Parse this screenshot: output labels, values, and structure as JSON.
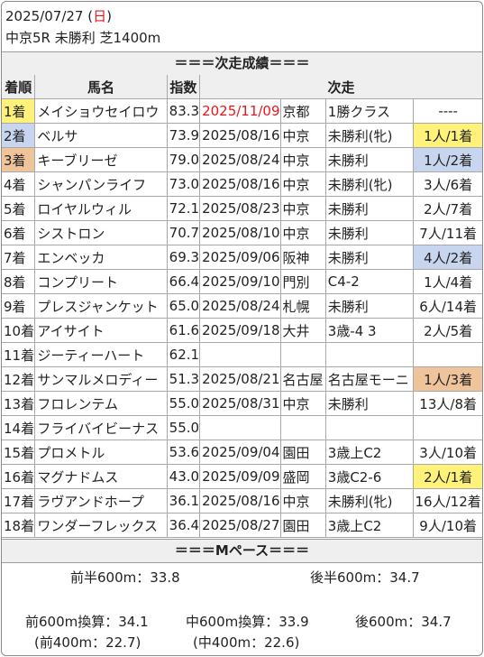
{
  "header": {
    "date": "2025/07/27",
    "dow_open": "(",
    "dow": "日",
    "dow_close": ")",
    "race": "中京5R 未勝利 芝1400m"
  },
  "section1": "＝＝＝次走成績＝＝＝",
  "columns": {
    "rank": "着順",
    "horse": "馬名",
    "index": "指数",
    "next": "次走"
  },
  "rows": [
    {
      "rank": "1着",
      "horse": "メイショウセイロウ",
      "index": "83.3",
      "date": "2025/11/09",
      "venue": "京都",
      "cls": "1勝クラス",
      "result": "----",
      "rank_color": "gold",
      "result_color": "",
      "date_red": true
    },
    {
      "rank": "2着",
      "horse": "ベルサ",
      "index": "73.9",
      "date": "2025/08/16",
      "venue": "中京",
      "cls": "未勝利(牝)",
      "result": "1人/1着",
      "rank_color": "silver",
      "result_color": "gold",
      "date_red": false
    },
    {
      "rank": "3着",
      "horse": "キーブリーゼ",
      "index": "79.0",
      "date": "2025/08/24",
      "venue": "中京",
      "cls": "未勝利",
      "result": "1人/2着",
      "rank_color": "bronze",
      "result_color": "silver",
      "date_red": false
    },
    {
      "rank": "4着",
      "horse": "シャンパンライフ",
      "index": "73.0",
      "date": "2025/08/16",
      "venue": "中京",
      "cls": "未勝利(牝)",
      "result": "3人/6着",
      "rank_color": "",
      "result_color": "",
      "date_red": false
    },
    {
      "rank": "5着",
      "horse": "ロイヤルウィル",
      "index": "72.1",
      "date": "2025/08/23",
      "venue": "中京",
      "cls": "未勝利",
      "result": "2人/7着",
      "rank_color": "",
      "result_color": "",
      "date_red": false
    },
    {
      "rank": "6着",
      "horse": "シストロン",
      "index": "70.7",
      "date": "2025/08/10",
      "venue": "中京",
      "cls": "未勝利",
      "result": "7人/11着",
      "rank_color": "",
      "result_color": "",
      "date_red": false
    },
    {
      "rank": "7着",
      "horse": "エンベッカ",
      "index": "69.3",
      "date": "2025/09/06",
      "venue": "阪神",
      "cls": "未勝利",
      "result": "4人/2着",
      "rank_color": "",
      "result_color": "silver",
      "date_red": false
    },
    {
      "rank": "8着",
      "horse": "コンプリート",
      "index": "66.4",
      "date": "2025/09/10",
      "venue": "門別",
      "cls": "C4-2",
      "result": "1人/4着",
      "rank_color": "",
      "result_color": "",
      "date_red": false
    },
    {
      "rank": "9着",
      "horse": "プレスジャンケット",
      "index": "65.0",
      "date": "2025/08/24",
      "venue": "札幌",
      "cls": "未勝利",
      "result": "6人/14着",
      "rank_color": "",
      "result_color": "",
      "date_red": false
    },
    {
      "rank": "10着",
      "horse": "アイサイト",
      "index": "61.6",
      "date": "2025/09/18",
      "venue": "大井",
      "cls": "3歳-4 3",
      "result": "2人/5着",
      "rank_color": "",
      "result_color": "",
      "date_red": false
    },
    {
      "rank": "11着",
      "horse": "ジーティーハート",
      "index": "62.1",
      "date": "",
      "venue": "",
      "cls": "",
      "result": "",
      "rank_color": "",
      "result_color": "",
      "date_red": false
    },
    {
      "rank": "12着",
      "horse": "サンマルメロディー",
      "index": "51.3",
      "date": "2025/08/21",
      "venue": "名古屋",
      "cls": "名古屋モーニ",
      "result": "1人/3着",
      "rank_color": "",
      "result_color": "bronze",
      "date_red": false
    },
    {
      "rank": "13着",
      "horse": "フロレンテム",
      "index": "55.0",
      "date": "2025/08/31",
      "venue": "中京",
      "cls": "未勝利",
      "result": "13人/8着",
      "rank_color": "",
      "result_color": "",
      "date_red": false
    },
    {
      "rank": "14着",
      "horse": "フライバイビーナス",
      "index": "55.0",
      "date": "",
      "venue": "",
      "cls": "",
      "result": "",
      "rank_color": "",
      "result_color": "",
      "date_red": false
    },
    {
      "rank": "15着",
      "horse": "プロメトル",
      "index": "53.6",
      "date": "2025/09/04",
      "venue": "園田",
      "cls": "3歳上C2",
      "result": "3人/10着",
      "rank_color": "",
      "result_color": "",
      "date_red": false
    },
    {
      "rank": "16着",
      "horse": "マグナドムス",
      "index": "43.0",
      "date": "2025/09/09",
      "venue": "盛岡",
      "cls": "3歳C2-6",
      "result": "2人/1着",
      "rank_color": "",
      "result_color": "gold",
      "date_red": false
    },
    {
      "rank": "17着",
      "horse": "ラヴアンドホープ",
      "index": "36.1",
      "date": "2025/08/16",
      "venue": "中京",
      "cls": "未勝利(牝)",
      "result": "16人/12着",
      "rank_color": "",
      "result_color": "",
      "date_red": false
    },
    {
      "rank": "18着",
      "horse": "ワンダーフレックス",
      "index": "36.4",
      "date": "2025/08/27",
      "venue": "園田",
      "cls": "3歳上C2",
      "result": "9人/10着",
      "rank_color": "",
      "result_color": "",
      "date_red": false
    }
  ],
  "section2": "＝＝＝Mペース＝＝＝",
  "pace": {
    "first_half": "前半600m：33.8",
    "second_half": "後半600m：34.7",
    "early600": "前600m換算：34.1",
    "mid600": "中600m換算：33.9",
    "late600": "後600m：34.7",
    "early400": "(前400m：22.7)",
    "mid400": "(中400m：22.6)"
  }
}
